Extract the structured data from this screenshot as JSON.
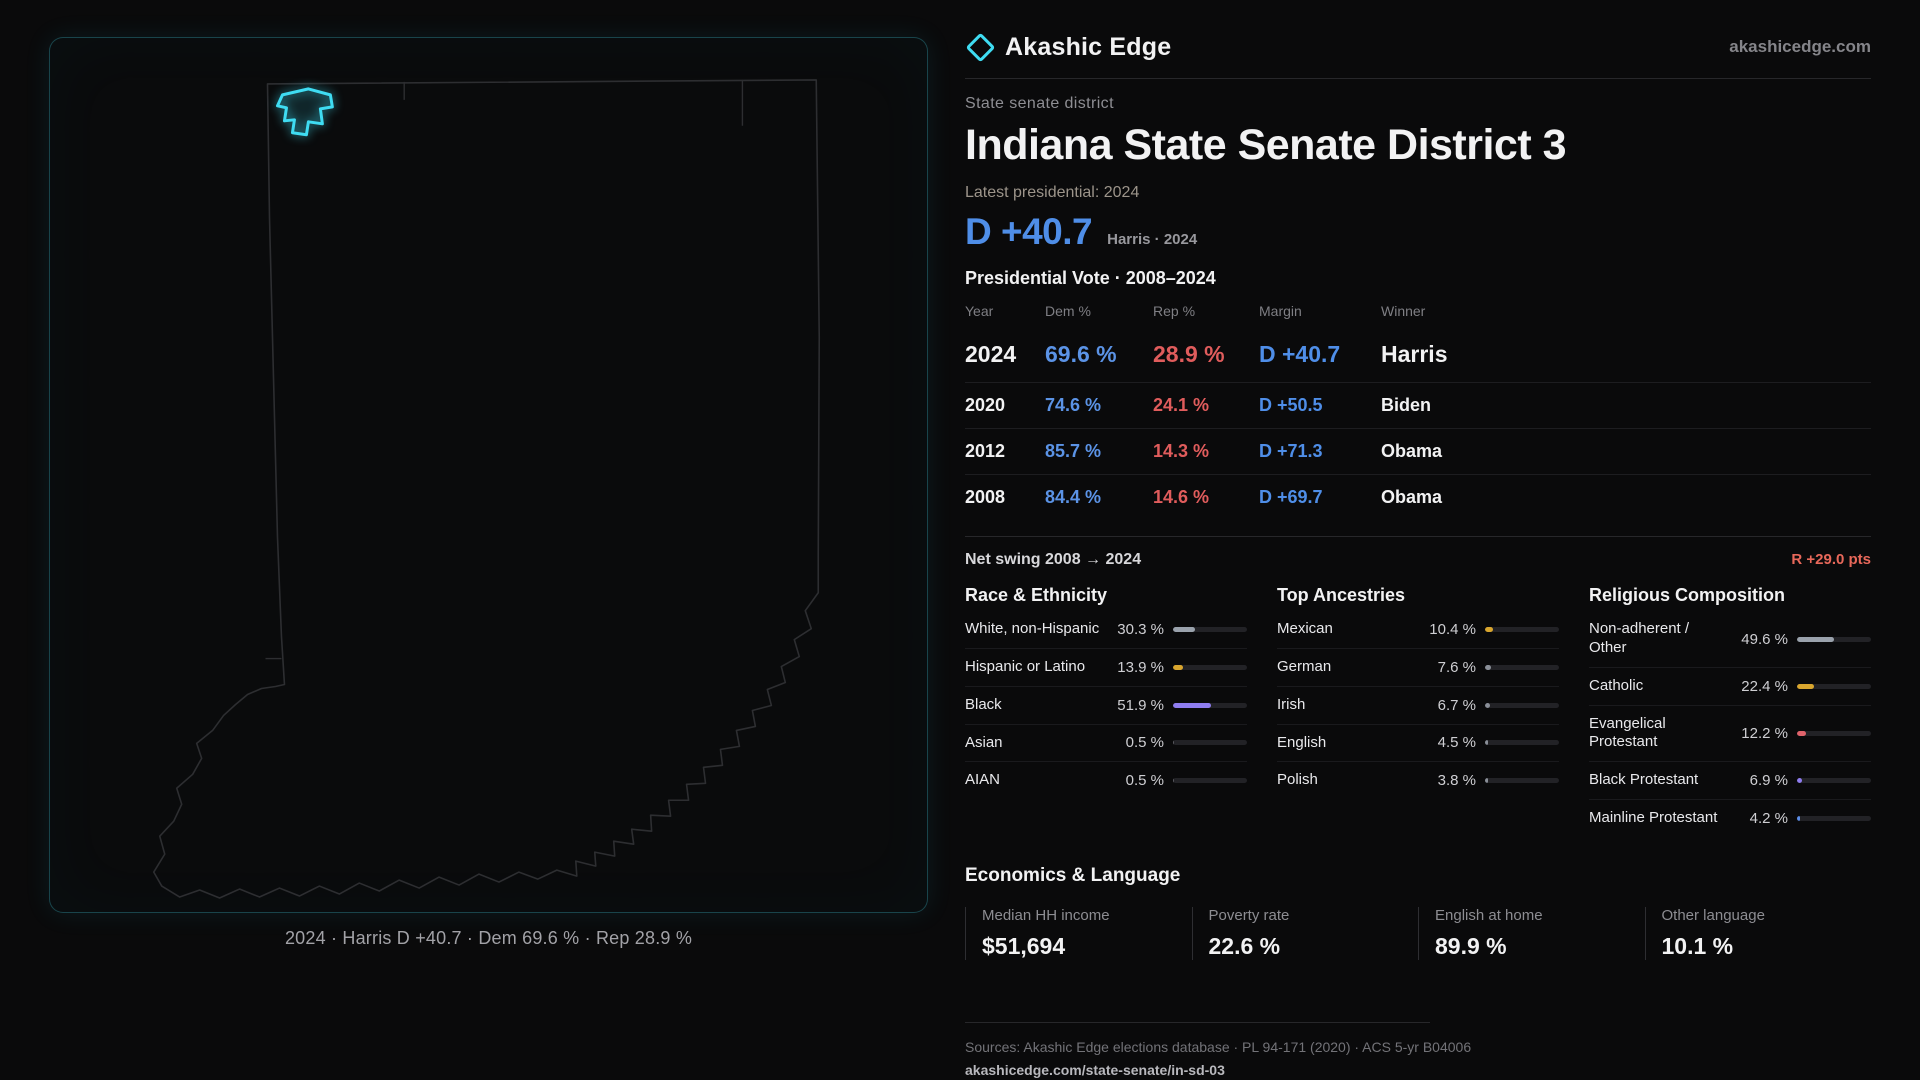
{
  "brand": {
    "name": "Akashic Edge",
    "domain": "akashicedge.com"
  },
  "map": {
    "state": "Indiana",
    "caption": "2024 · Harris D +40.7 · Dem 69.6 % · Rep 28.9 %",
    "district_highlight_color": "#3fdcf2"
  },
  "header": {
    "kicker": "State senate district",
    "title": "Indiana State Senate District 3",
    "latest_label": "Latest presidential: 2024",
    "margin_big": "D +40.7",
    "margin_sub": "Harris · 2024"
  },
  "net_swing": {
    "label": "Net swing 2008 → 2024",
    "value": "R +29.0 pts"
  },
  "economics": {
    "title": "Economics & Language",
    "stats": [
      {
        "label": "Median HH income",
        "value": "$51,694"
      },
      {
        "label": "Poverty rate",
        "value": "22.6 %"
      },
      {
        "label": "English at home",
        "value": "89.9 %"
      },
      {
        "label": "Other language",
        "value": "10.1 %"
      }
    ]
  },
  "footer": {
    "sources": "Sources: Akashic Edge elections database · PL 94-171 (2020) · ACS 5-yr B04006",
    "permalink": "akashicedge.com/state-senate/in-sd-03"
  },
  "colors": {
    "dem": "#5b93e6",
    "rep": "#e05c5c",
    "accent": "#3fdcf2",
    "swing": "#e8685a"
  },
  "chart_data": [
    {
      "type": "table",
      "title": "Presidential Vote · 2008–2024",
      "columns": [
        "Year",
        "Dem %",
        "Rep %",
        "Margin",
        "Winner"
      ],
      "rows": [
        {
          "year": "2024",
          "dem_pct": 69.6,
          "rep_pct": 28.9,
          "margin": "D +40.7",
          "winner": "Harris"
        },
        {
          "year": "2020",
          "dem_pct": 74.6,
          "rep_pct": 24.1,
          "margin": "D +50.5",
          "winner": "Biden"
        },
        {
          "year": "2012",
          "dem_pct": 85.7,
          "rep_pct": 14.3,
          "margin": "D +71.3",
          "winner": "Obama"
        },
        {
          "year": "2008",
          "dem_pct": 84.4,
          "rep_pct": 14.6,
          "margin": "D +69.7",
          "winner": "Obama"
        }
      ]
    },
    {
      "type": "bar",
      "title": "Race & Ethnicity",
      "categories": [
        "White, non-Hispanic",
        "Hispanic or Latino",
        "Black",
        "Asian",
        "AIAN"
      ],
      "values": [
        30.3,
        13.9,
        51.9,
        0.5,
        0.5
      ],
      "unit": "%",
      "xlim": [
        0,
        100
      ],
      "bar_colors": [
        "#9aa2ac",
        "#d9a62e",
        "#8f7df0",
        "#5a5a60",
        "#5a5a60"
      ]
    },
    {
      "type": "bar",
      "title": "Top Ancestries",
      "categories": [
        "Mexican",
        "German",
        "Irish",
        "English",
        "Polish"
      ],
      "values": [
        10.4,
        7.6,
        6.7,
        4.5,
        3.8
      ],
      "unit": "%",
      "xlim": [
        0,
        100
      ],
      "bar_colors": [
        "#d9a62e",
        "#8a8f98",
        "#8a8f98",
        "#8a8f98",
        "#8a8f98"
      ]
    },
    {
      "type": "bar",
      "title": "Religious Composition",
      "categories": [
        "Non-adherent / Other",
        "Catholic",
        "Evangelical Protestant",
        "Black Protestant",
        "Mainline Protestant"
      ],
      "values": [
        49.6,
        22.4,
        12.2,
        6.9,
        4.2
      ],
      "unit": "%",
      "xlim": [
        0,
        100
      ],
      "bar_colors": [
        "#9aa2ac",
        "#d9a62e",
        "#e0636b",
        "#8f7df0",
        "#5b8de8"
      ]
    }
  ]
}
